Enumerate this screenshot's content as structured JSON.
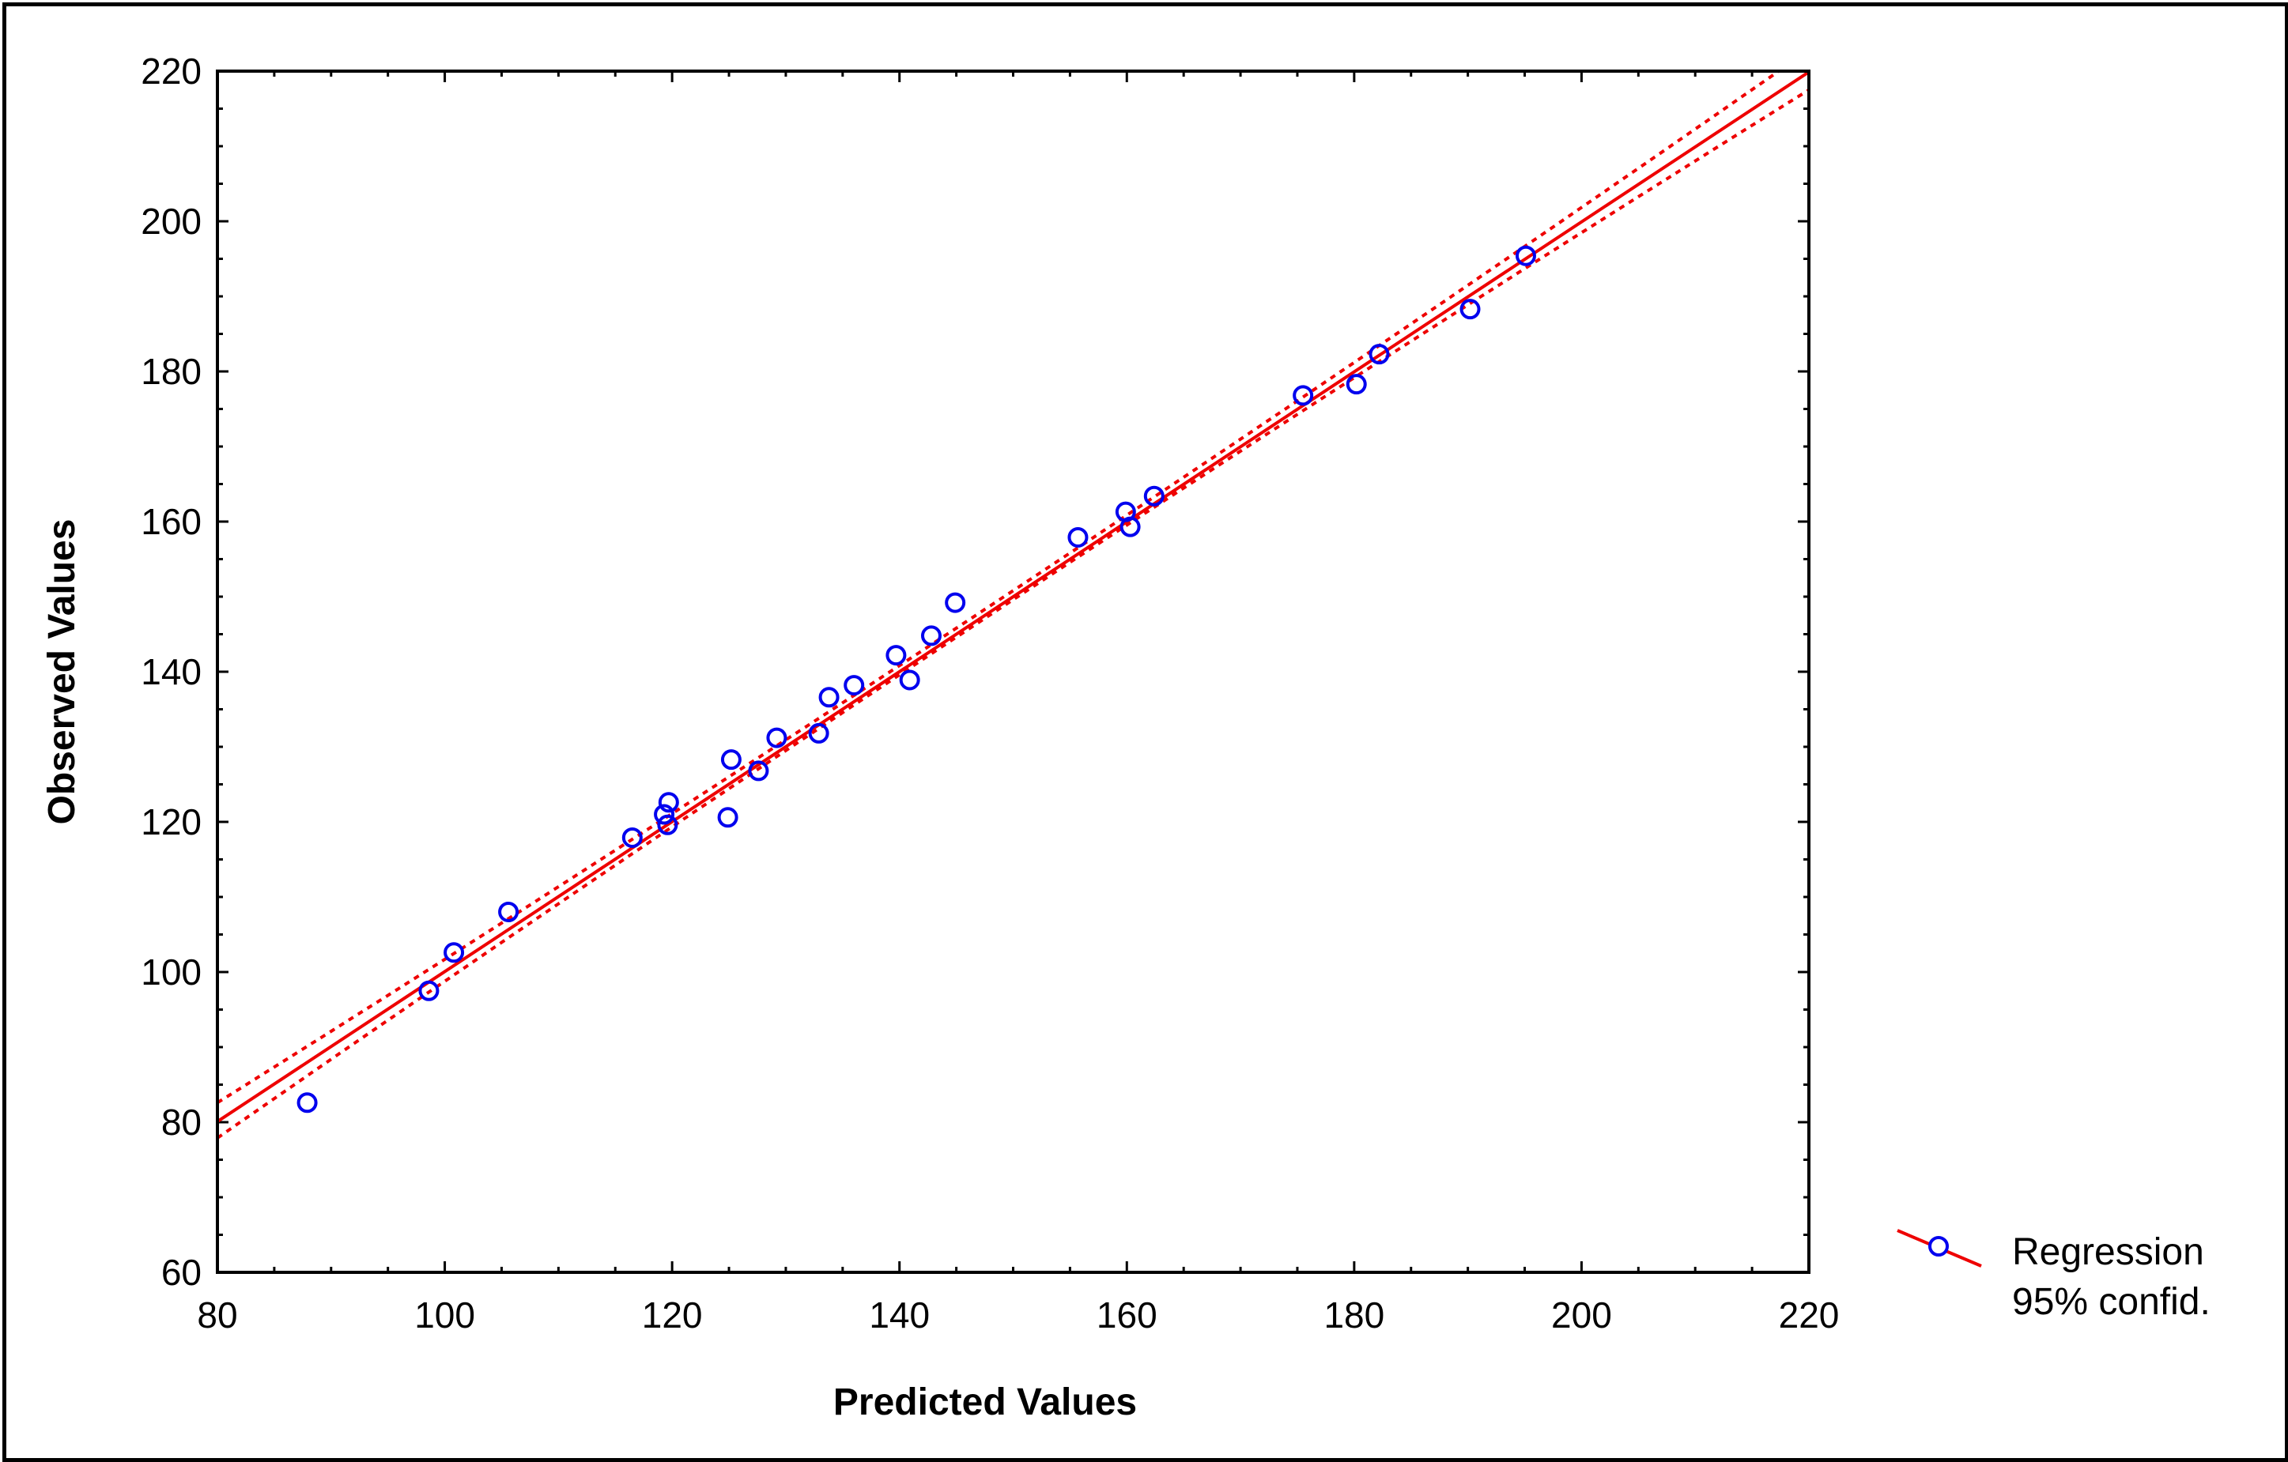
{
  "chart_data": {
    "type": "scatter",
    "xlabel": "Predicted Values",
    "ylabel": "Observed Values",
    "xlim": [
      80,
      220
    ],
    "ylim": [
      60,
      220
    ],
    "x_ticks": [
      "80",
      "100",
      "120",
      "140",
      "160",
      "180",
      "200",
      "220"
    ],
    "y_ticks": [
      "60",
      "80",
      "100",
      "120",
      "140",
      "160",
      "180",
      "200",
      "220"
    ],
    "grid": false,
    "legend_position": "right",
    "legend": {
      "line1": "Regression",
      "line2": "95% confid."
    },
    "colors": {
      "points": "#0000ee",
      "regression": "#ee0000",
      "frame": "#000000"
    },
    "points": [
      {
        "x": 87.9,
        "y": 82.6
      },
      {
        "x": 98.6,
        "y": 97.5
      },
      {
        "x": 100.8,
        "y": 102.6
      },
      {
        "x": 105.6,
        "y": 108.0
      },
      {
        "x": 116.5,
        "y": 117.9
      },
      {
        "x": 119.3,
        "y": 121.0
      },
      {
        "x": 119.7,
        "y": 122.6
      },
      {
        "x": 119.6,
        "y": 119.6
      },
      {
        "x": 124.9,
        "y": 120.6
      },
      {
        "x": 125.2,
        "y": 128.3
      },
      {
        "x": 127.6,
        "y": 126.8
      },
      {
        "x": 129.2,
        "y": 131.2
      },
      {
        "x": 132.9,
        "y": 131.8
      },
      {
        "x": 133.8,
        "y": 136.6
      },
      {
        "x": 136.0,
        "y": 138.2
      },
      {
        "x": 139.7,
        "y": 142.2
      },
      {
        "x": 140.9,
        "y": 138.9
      },
      {
        "x": 142.8,
        "y": 144.8
      },
      {
        "x": 144.9,
        "y": 149.2
      },
      {
        "x": 155.7,
        "y": 157.9
      },
      {
        "x": 159.9,
        "y": 161.3
      },
      {
        "x": 160.3,
        "y": 159.3
      },
      {
        "x": 162.4,
        "y": 163.4
      },
      {
        "x": 175.5,
        "y": 176.8
      },
      {
        "x": 180.2,
        "y": 178.3
      },
      {
        "x": 182.2,
        "y": 182.3
      },
      {
        "x": 190.2,
        "y": 188.3
      },
      {
        "x": 195.1,
        "y": 195.4
      }
    ],
    "regression": {
      "intercept": 0.2,
      "slope": 0.9986
    },
    "confidence_band": [
      {
        "x": 80,
        "upper": 82.6,
        "lower": 77.9
      },
      {
        "x": 150,
        "upper": 150.8,
        "lower": 149.6
      },
      {
        "x": 220,
        "upper": 222.8,
        "lower": 217.5
      }
    ]
  }
}
